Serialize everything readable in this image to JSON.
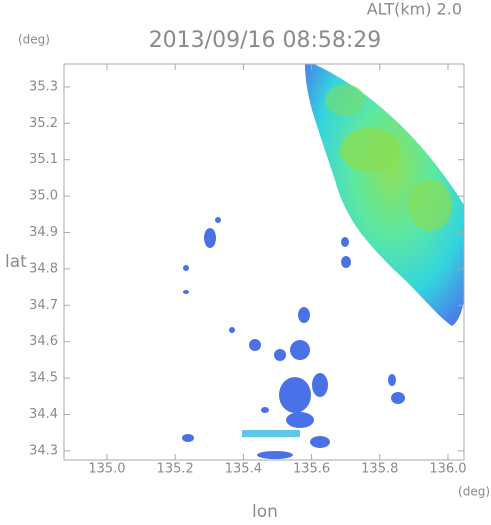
{
  "chart_data": {
    "type": "radar-map",
    "title": "2013/09/16 08:58:29",
    "altitude_label": "ALT(km) 2.0",
    "y_unit": "(deg)",
    "x_unit": "(deg)",
    "ylabel": "lat",
    "xlabel": "lon",
    "xlim": [
      134.874,
      136.047
    ],
    "ylim": [
      34.275,
      35.363
    ],
    "xticks": [
      {
        "value": 135.0,
        "label": "135.0"
      },
      135.2,
      135.4,
      135.6,
      135.8,
      {
        "value": 136.0,
        "label": "136.0"
      }
    ],
    "yticks": [
      34.3,
      34.4,
      34.5,
      34.6,
      34.7,
      34.8,
      34.9,
      {
        "value": 35.0,
        "label": "35.0"
      },
      35.1,
      35.2,
      35.3
    ]
  }
}
